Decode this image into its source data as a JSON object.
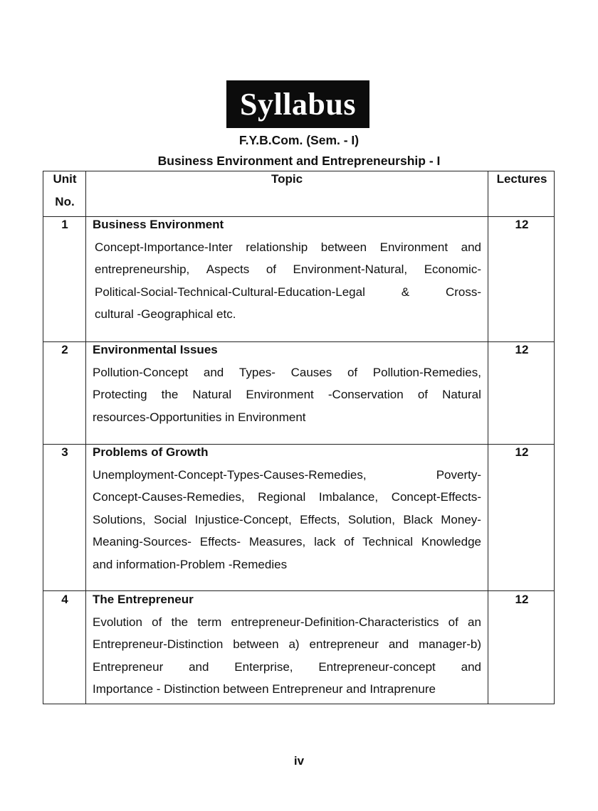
{
  "banner": "Syllabus",
  "course": "F.Y.B.Com. (Sem. - I)",
  "subject": "Business Environment and Entrepreneurship - I",
  "table": {
    "headers": {
      "unit_line1": "Unit",
      "unit_line2": "No.",
      "topic": "Topic",
      "lectures": "Lectures"
    },
    "rows": [
      {
        "unit": "1",
        "title": "Business Environment",
        "lectures": "12",
        "lines": [
          "Concept-Importance-Inter relationship between Environment and",
          "entrepreneurship, Aspects of Environment-Natural, Economic-",
          "Political-Social-Technical-Cultural-Education-Legal & Cross-",
          "cultural -Geographical etc."
        ]
      },
      {
        "unit": "2",
        "title": "Environmental Issues",
        "lectures": "12",
        "lines": [
          "Pollution-Concept and Types- Causes of Pollution-Remedies,",
          "Protecting the Natural Environment -Conservation of Natural",
          "resources-Opportunities in Environment"
        ]
      },
      {
        "unit": "3",
        "title": "Problems of Growth",
        "lectures": "12",
        "lines": [
          "Unemployment-Concept-Types-Causes-Remedies, Poverty-",
          "Concept-Causes-Remedies, Regional Imbalance, Concept-Effects-",
          "Solutions, Social Injustice-Concept, Effects, Solution, Black Money-",
          "Meaning-Sources- Effects- Measures, lack of Technical Knowledge",
          "and information-Problem -Remedies"
        ]
      },
      {
        "unit": "4",
        "title": "The Entrepreneur",
        "lectures": "12",
        "lines": [
          "Evolution of the term entrepreneur-Definition-Characteristics of an",
          "Entrepreneur-Distinction between a) entrepreneur and manager-b)",
          "Entrepreneur and Enterprise, Entrepreneur-concept and",
          "Importance - Distinction between Entrepreneur and Intraprenure"
        ]
      }
    ]
  },
  "page_number": "iv"
}
